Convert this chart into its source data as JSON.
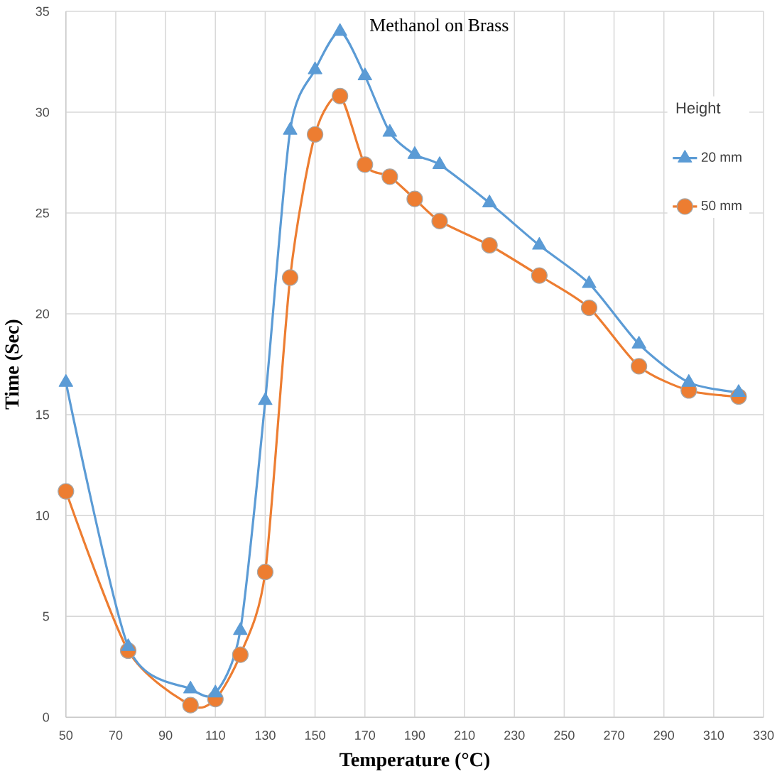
{
  "chart_data": {
    "type": "line",
    "title": "Methanol on Brass",
    "xlabel": "Temperature (°C)",
    "ylabel": "Time (Sec)",
    "legend_title": "Height",
    "x": [
      50,
      75,
      100,
      110,
      120,
      130,
      140,
      150,
      160,
      170,
      180,
      190,
      200,
      220,
      240,
      260,
      280,
      300,
      320
    ],
    "series": [
      {
        "name": "20 mm",
        "color": "#5b9bd5",
        "marker": "triangle",
        "values": [
          16.6,
          3.5,
          1.4,
          1.2,
          4.3,
          15.7,
          29.1,
          32.1,
          34.0,
          31.8,
          29.0,
          27.9,
          27.4,
          25.5,
          23.4,
          21.5,
          18.5,
          16.6,
          16.1
        ]
      },
      {
        "name": "50 mm",
        "color": "#ed7d31",
        "marker": "circle",
        "values": [
          11.2,
          3.3,
          0.6,
          0.9,
          3.1,
          7.2,
          21.8,
          28.9,
          30.8,
          27.4,
          26.8,
          25.7,
          24.6,
          23.4,
          21.9,
          20.3,
          17.4,
          16.2,
          15.9
        ]
      }
    ],
    "xlim": [
      50,
      330
    ],
    "xticks": [
      50,
      70,
      90,
      110,
      130,
      150,
      170,
      190,
      210,
      230,
      250,
      270,
      290,
      310,
      330
    ],
    "ylim": [
      0,
      35
    ],
    "yticks": [
      0,
      5,
      10,
      15,
      20,
      25,
      30,
      35
    ],
    "grid": true,
    "legend": "right",
    "line_style": "solid"
  }
}
